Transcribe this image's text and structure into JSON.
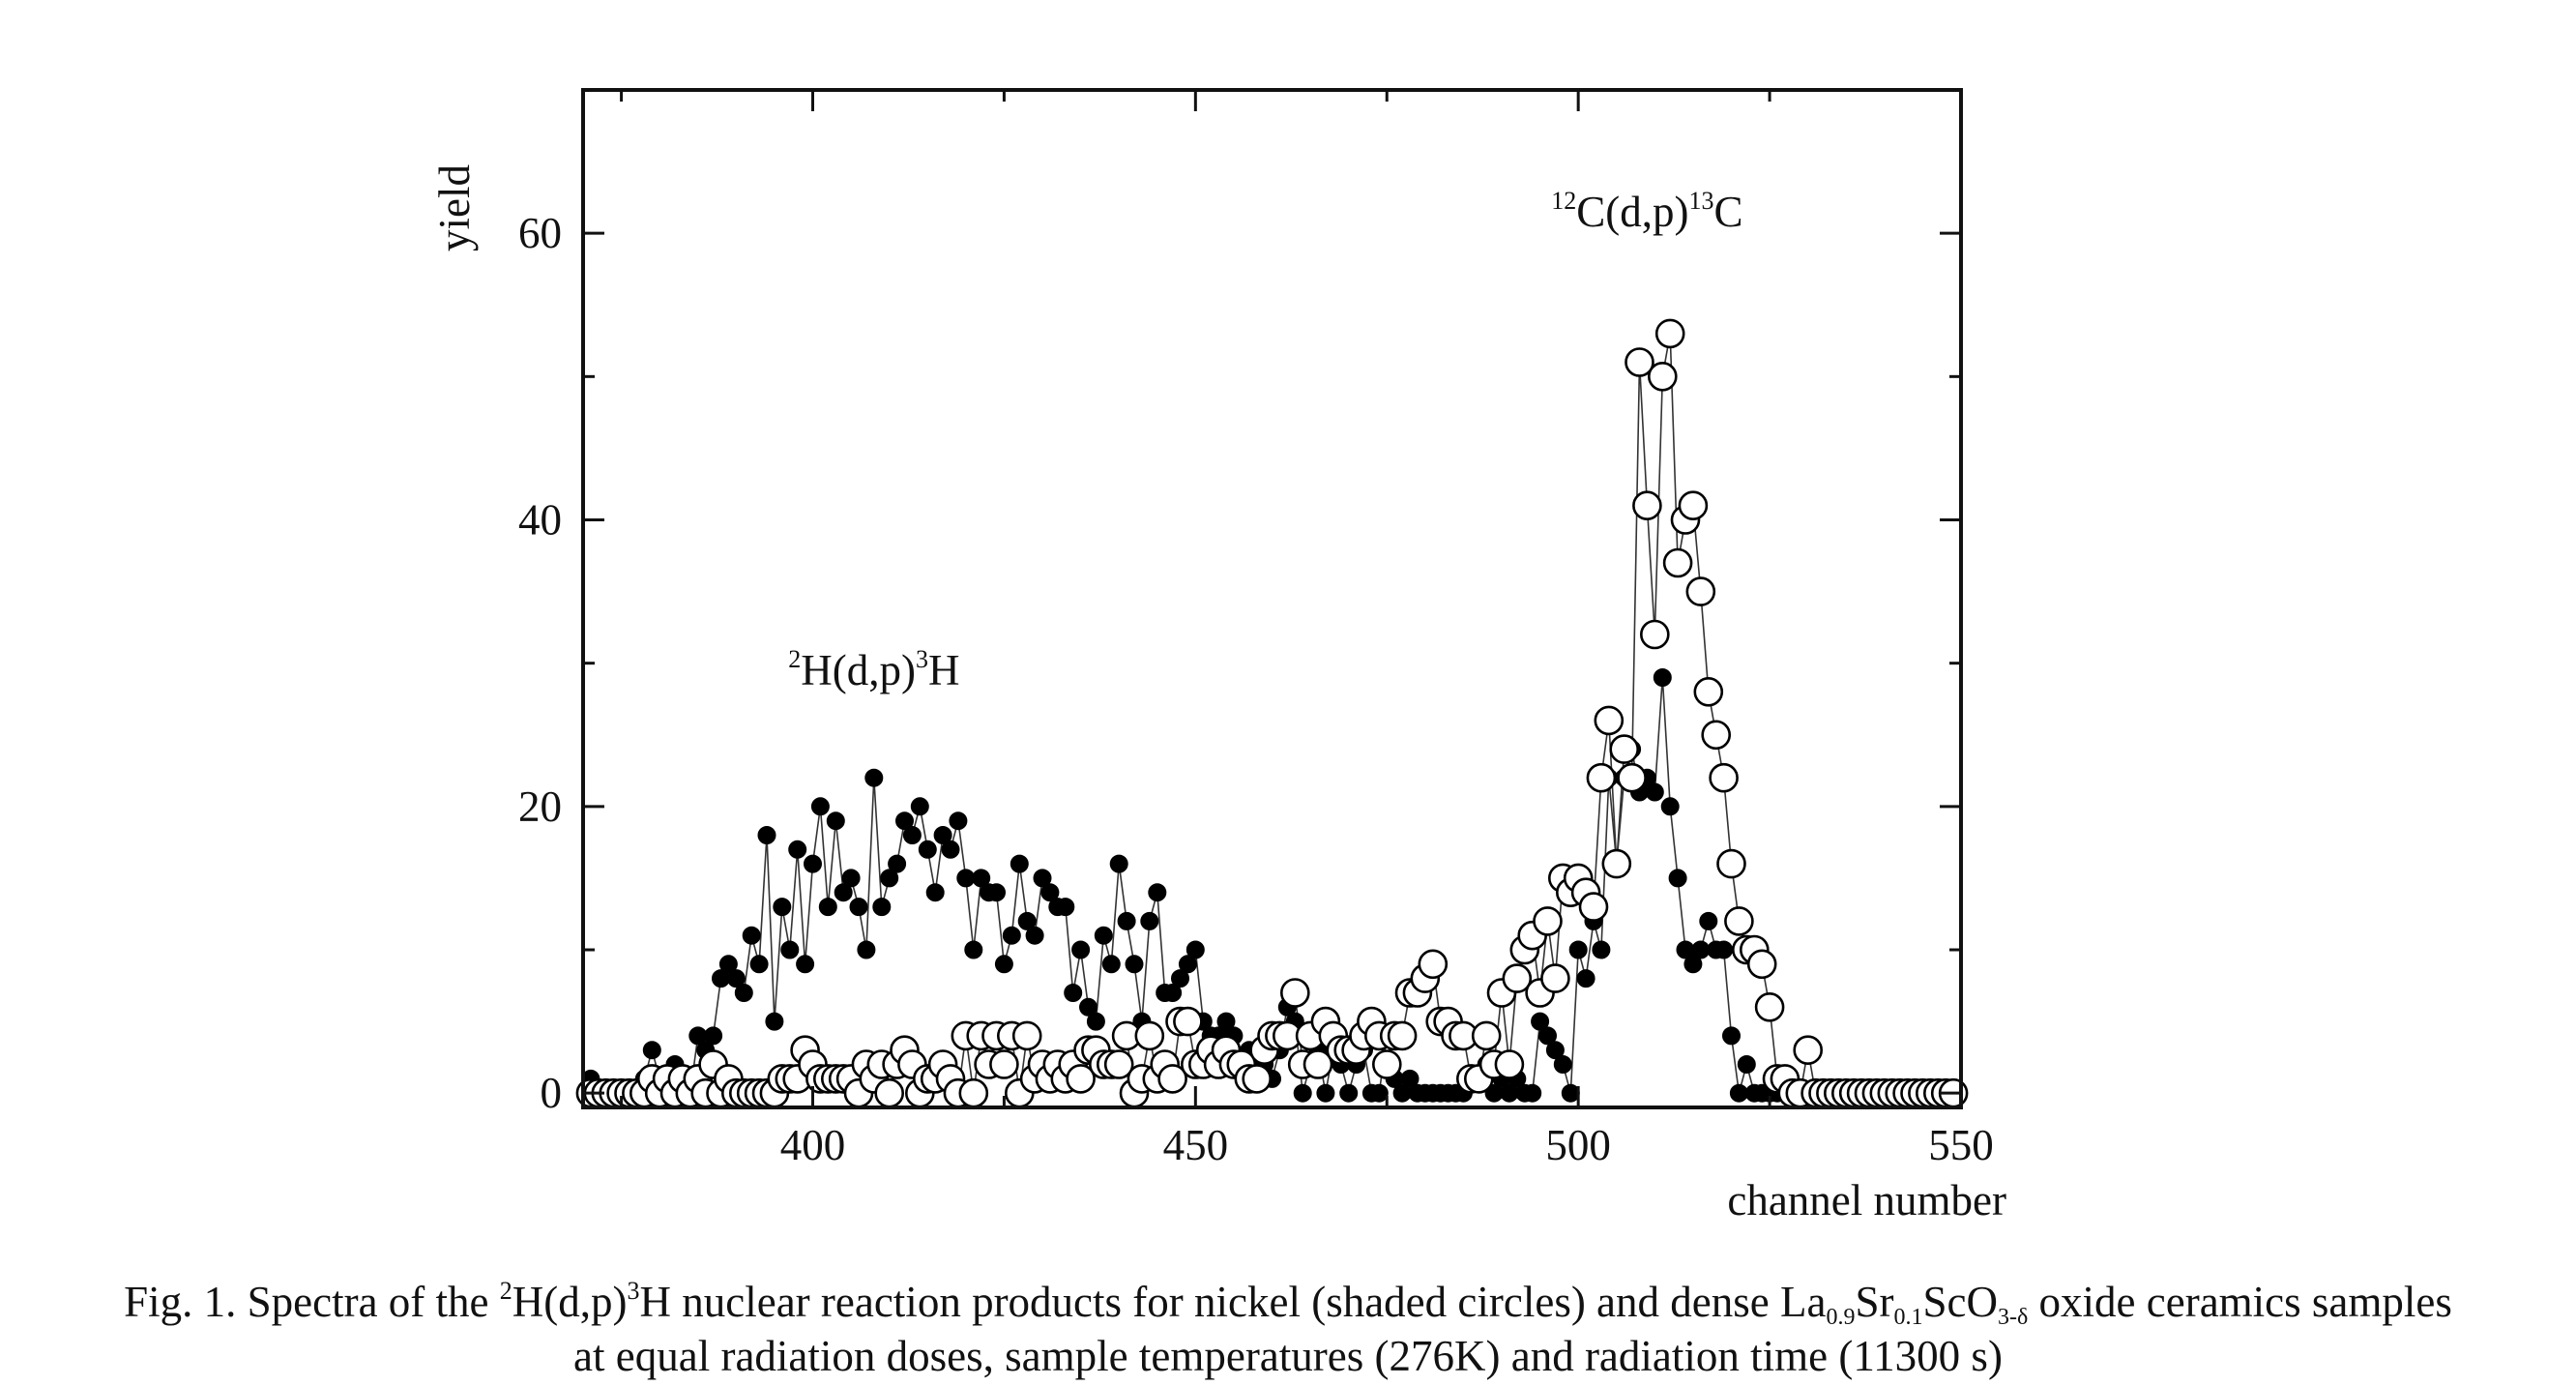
{
  "chart_data": {
    "type": "scatter",
    "xlabel": "channel number",
    "ylabel": "yield",
    "xlim": [
      370,
      550
    ],
    "ylim": [
      -1,
      70
    ],
    "x_ticks": [
      400,
      450,
      500,
      550
    ],
    "y_ticks": [
      0,
      20,
      40,
      60
    ],
    "grid": false,
    "annotations": [
      {
        "id": "h",
        "pre": "2",
        "a": "H(d,p)",
        "mid": "3",
        "b": "H",
        "x": 408,
        "y": 28.5
      },
      {
        "id": "c",
        "pre": "12",
        "a": "C(d,p)",
        "mid": "13",
        "b": "C",
        "x": 509,
        "y": 60.5
      }
    ],
    "series": [
      {
        "marker": "filled",
        "x": [
          371,
          372,
          373,
          374,
          375,
          376,
          377,
          378,
          379,
          380,
          381,
          382,
          383,
          384,
          385,
          386,
          387,
          388,
          389,
          390,
          391,
          392,
          393,
          394,
          395,
          396,
          397,
          398,
          399,
          400,
          401,
          402,
          403,
          404,
          405,
          406,
          407,
          408,
          409,
          410,
          411,
          412,
          413,
          414,
          415,
          416,
          417,
          418,
          419,
          420,
          421,
          422,
          423,
          424,
          425,
          426,
          427,
          428,
          429,
          430,
          431,
          432,
          433,
          434,
          435,
          436,
          437,
          438,
          439,
          440,
          441,
          442,
          443,
          444,
          445,
          446,
          447,
          448,
          449,
          450,
          451,
          452,
          453,
          454,
          455,
          456,
          457,
          458,
          459,
          460,
          461,
          462,
          463,
          464,
          465,
          466,
          467,
          468,
          469,
          470,
          471,
          472,
          473,
          474,
          475,
          476,
          477,
          478,
          479,
          480,
          481,
          482,
          483,
          484,
          485,
          486,
          487,
          488,
          489,
          490,
          491,
          492,
          493,
          494,
          495,
          496,
          497,
          498,
          499,
          500,
          501,
          502,
          503,
          504,
          505,
          506,
          507,
          508,
          509,
          510,
          511,
          512,
          513,
          514,
          515,
          516,
          517,
          518,
          519,
          520,
          521,
          522,
          523,
          524,
          525,
          526,
          527,
          528,
          529,
          530,
          531,
          532,
          533,
          534,
          535,
          536,
          537,
          538,
          539,
          540,
          541,
          542,
          543,
          544,
          545,
          546,
          547,
          548,
          549
        ],
        "y": [
          1,
          0,
          0,
          0,
          0,
          0,
          0,
          1,
          3,
          1,
          1,
          2,
          0,
          0,
          4,
          3,
          4,
          8,
          9,
          8,
          7,
          11,
          9,
          18,
          5,
          13,
          10,
          17,
          9,
          16,
          20,
          13,
          19,
          14,
          15,
          13,
          10,
          22,
          13,
          15,
          16,
          19,
          18,
          20,
          17,
          14,
          18,
          17,
          19,
          15,
          10,
          15,
          14,
          14,
          9,
          11,
          16,
          12,
          11,
          15,
          14,
          13,
          13,
          7,
          10,
          6,
          5,
          11,
          9,
          16,
          12,
          9,
          5,
          12,
          14,
          7,
          7,
          8,
          9,
          10,
          5,
          4,
          4,
          5,
          4,
          2,
          3,
          3,
          2,
          1,
          3,
          6,
          5,
          0,
          2,
          3,
          0,
          3,
          2,
          0,
          2,
          3,
          0,
          0,
          4,
          1,
          0,
          1,
          0,
          0,
          0,
          0,
          0,
          0,
          0,
          1,
          1,
          2,
          0,
          1,
          0,
          1,
          0,
          0,
          5,
          4,
          3,
          2,
          0,
          10,
          8,
          12,
          10,
          22,
          16,
          22,
          24,
          21,
          22,
          21,
          29,
          20,
          15,
          10,
          9,
          10,
          12,
          10,
          10,
          4,
          0,
          2,
          0,
          0,
          0,
          0,
          0,
          0,
          0,
          0,
          0,
          0,
          0,
          0,
          0,
          0,
          0,
          0,
          0,
          0,
          0,
          0,
          0,
          0,
          0,
          0,
          0,
          0,
          0
        ]
      },
      {
        "marker": "open",
        "x": [
          371,
          372,
          373,
          374,
          375,
          376,
          377,
          378,
          379,
          380,
          381,
          382,
          383,
          384,
          385,
          386,
          387,
          388,
          389,
          390,
          391,
          392,
          393,
          394,
          395,
          396,
          397,
          398,
          399,
          400,
          401,
          402,
          403,
          404,
          405,
          406,
          407,
          408,
          409,
          410,
          411,
          412,
          413,
          414,
          415,
          416,
          417,
          418,
          419,
          420,
          421,
          422,
          423,
          424,
          425,
          426,
          427,
          428,
          429,
          430,
          431,
          432,
          433,
          434,
          435,
          436,
          437,
          438,
          439,
          440,
          441,
          442,
          443,
          444,
          445,
          446,
          447,
          448,
          449,
          450,
          451,
          452,
          453,
          454,
          455,
          456,
          457,
          458,
          459,
          460,
          461,
          462,
          463,
          464,
          465,
          466,
          467,
          468,
          469,
          470,
          471,
          472,
          473,
          474,
          475,
          476,
          477,
          478,
          479,
          480,
          481,
          482,
          483,
          484,
          485,
          486,
          487,
          488,
          489,
          490,
          491,
          492,
          493,
          494,
          495,
          496,
          497,
          498,
          499,
          500,
          501,
          502,
          503,
          504,
          505,
          506,
          507,
          508,
          509,
          510,
          511,
          512,
          513,
          514,
          515,
          516,
          517,
          518,
          519,
          520,
          521,
          522,
          523,
          524,
          525,
          526,
          527,
          528,
          529,
          530,
          531,
          532,
          533,
          534,
          535,
          536,
          537,
          538,
          539,
          540,
          541,
          542,
          543,
          544,
          545,
          546,
          547,
          548,
          549
        ],
        "y": [
          0,
          0,
          0,
          0,
          0,
          0,
          0,
          0,
          1,
          0,
          1,
          0,
          1,
          0,
          1,
          0,
          2,
          0,
          1,
          0,
          0,
          0,
          0,
          0,
          0,
          1,
          1,
          1,
          3,
          2,
          1,
          1,
          1,
          1,
          1,
          0,
          2,
          1,
          2,
          0,
          2,
          3,
          2,
          0,
          1,
          1,
          2,
          1,
          0,
          4,
          0,
          4,
          2,
          4,
          2,
          4,
          0,
          4,
          1,
          2,
          1,
          2,
          1,
          2,
          1,
          3,
          3,
          2,
          2,
          2,
          4,
          0,
          1,
          4,
          1,
          2,
          1,
          5,
          5,
          2,
          2,
          3,
          2,
          3,
          2,
          2,
          1,
          1,
          3,
          4,
          4,
          4,
          7,
          2,
          4,
          2,
          5,
          4,
          3,
          3,
          3,
          4,
          5,
          4,
          2,
          4,
          4,
          7,
          7,
          8,
          9,
          5,
          5,
          4,
          4,
          1,
          1,
          4,
          2,
          7,
          2,
          8,
          10,
          11,
          7,
          12,
          8,
          15,
          14,
          15,
          14,
          13,
          22,
          26,
          16,
          24,
          22,
          51,
          41,
          32,
          50,
          53,
          37,
          40,
          41,
          35,
          28,
          25,
          22,
          16,
          12,
          10,
          10,
          9,
          6,
          1,
          1,
          0,
          0,
          3,
          0,
          0,
          0,
          0,
          0,
          0,
          0,
          0,
          0,
          0,
          0,
          0,
          0,
          0,
          0,
          0,
          0,
          0,
          0
        ]
      }
    ]
  },
  "caption": {
    "l1_a": "Fig. 1. Spectra of the ",
    "l1_sup1": "2",
    "l1_b": "H(d,p)",
    "l1_sup2": "3",
    "l1_c": "H nuclear reaction products for nickel (shaded circles) and dense La",
    "l1_sub1": "0.9",
    "l1_d": "Sr",
    "l1_sub2": "0.1",
    "l1_e": "ScO",
    "l1_sub3": "3-δ",
    "l1_f": " oxide ceramics samples",
    "l2": "at equal radiation doses, sample temperatures (276K) and radiation time (11300 s)"
  }
}
